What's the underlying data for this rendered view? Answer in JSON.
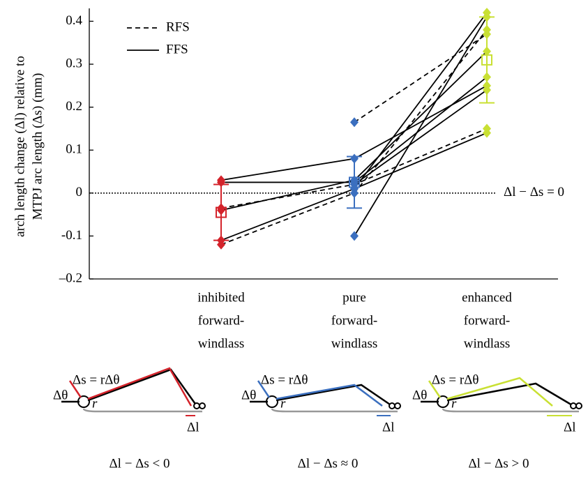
{
  "chart_data": {
    "type": "line",
    "y_label": [
      "arch length change (Δl) relative to",
      "MTPJ arc length (Δs) (mm)"
    ],
    "categories": [
      [
        "inhibited",
        "forward-",
        "windlass"
      ],
      [
        "pure",
        "forward-",
        "windlass"
      ],
      [
        "enhanced",
        "forward-",
        "windlass"
      ]
    ],
    "category_colors": [
      "#d4232b",
      "#3b6fbf",
      "#c9e033"
    ],
    "ylim": [
      -0.2,
      0.43
    ],
    "yticks": [
      {
        "value": -0.2,
        "label": "–0.2"
      },
      {
        "value": -0.1,
        "label": "-0.1"
      },
      0,
      0.1,
      0.2,
      0.3,
      0.4
    ],
    "legend": [
      {
        "name": "RFS",
        "style": "dashed"
      },
      {
        "name": "FFS",
        "style": "solid"
      }
    ],
    "series": [
      {
        "style": "dashed",
        "values": [
          -0.12,
          0.0,
          0.38
        ]
      },
      {
        "style": "dashed",
        "values": [
          null,
          0.165,
          0.37
        ]
      },
      {
        "style": "dashed",
        "values": [
          -0.035,
          0.02,
          0.15
        ]
      },
      {
        "style": "solid",
        "values": [
          0.03,
          0.08,
          0.25
        ]
      },
      {
        "style": "solid",
        "values": [
          0.025,
          0.025,
          0.27
        ]
      },
      {
        "style": "solid",
        "values": [
          -0.04,
          0.03,
          0.33
        ]
      },
      {
        "style": "solid",
        "values": [
          -0.11,
          0.01,
          0.42
        ]
      },
      {
        "style": "solid",
        "values": [
          null,
          -0.1,
          0.41
        ]
      },
      {
        "style": "solid",
        "values": [
          null,
          0.02,
          0.24
        ]
      },
      {
        "style": "solid",
        "values": [
          null,
          0.01,
          0.14
        ]
      }
    ],
    "mean": [
      -0.045,
      0.025,
      0.31
    ],
    "error": [
      0.065,
      0.06,
      0.1
    ],
    "reference_line": {
      "value": 0,
      "label": "Δl − Δs = 0"
    }
  },
  "diagrams": [
    {
      "arc_label": "Δs = rΔθ",
      "angle_label": "Δθ",
      "radius_label": "r",
      "length_label": "Δl",
      "caption": "Δl − Δs < 0"
    },
    {
      "arc_label": "Δs = rΔθ",
      "angle_label": "Δθ",
      "radius_label": "r",
      "length_label": "Δl",
      "caption": "Δl − Δs ≈ 0"
    },
    {
      "arc_label": "Δs = rΔθ",
      "angle_label": "Δθ",
      "radius_label": "r",
      "length_label": "Δl",
      "caption": "Δl − Δs > 0"
    }
  ]
}
